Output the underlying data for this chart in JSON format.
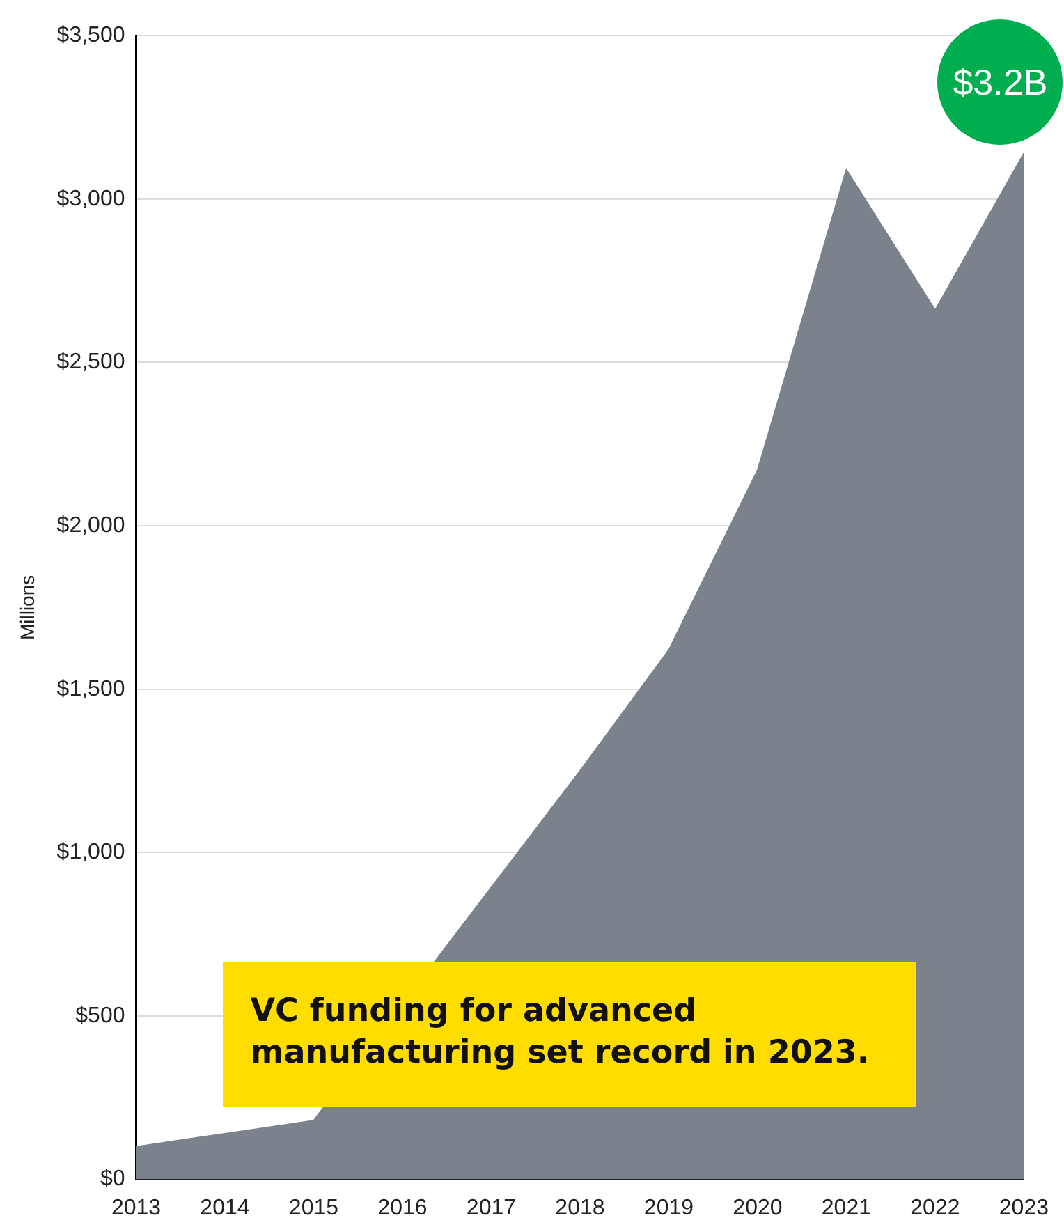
{
  "chart_data": {
    "type": "area",
    "ylabel": "Millions",
    "categories": [
      "2013",
      "2014",
      "2015",
      "2016",
      "2017",
      "2018",
      "2019",
      "2020",
      "2021",
      "2022",
      "2023"
    ],
    "series": [
      {
        "color": "#7b828c",
        "values": [
          100,
          140,
          180,
          null,
          null,
          1250,
          1620,
          2170,
          3090,
          2660,
          3140
        ]
      }
    ],
    "ylim": [
      0,
      3500
    ],
    "yticks": [
      {
        "value": 0,
        "label": "$0"
      },
      {
        "value": 500,
        "label": "$500"
      },
      {
        "value": 1000,
        "label": "$1,000"
      },
      {
        "value": 1500,
        "label": "$1,500"
      },
      {
        "value": 2000,
        "label": "$2,000"
      },
      {
        "value": 2500,
        "label": "$2,500"
      },
      {
        "value": 3000,
        "label": "$3,000"
      },
      {
        "value": 3500,
        "label": "$3,500"
      }
    ],
    "grid": "y",
    "legend": false,
    "annotations": [
      {
        "text": "$3.2B",
        "x": "2023",
        "y": 3140
      },
      "VC funding for advanced manufacturing set record in 2023."
    ]
  }
}
